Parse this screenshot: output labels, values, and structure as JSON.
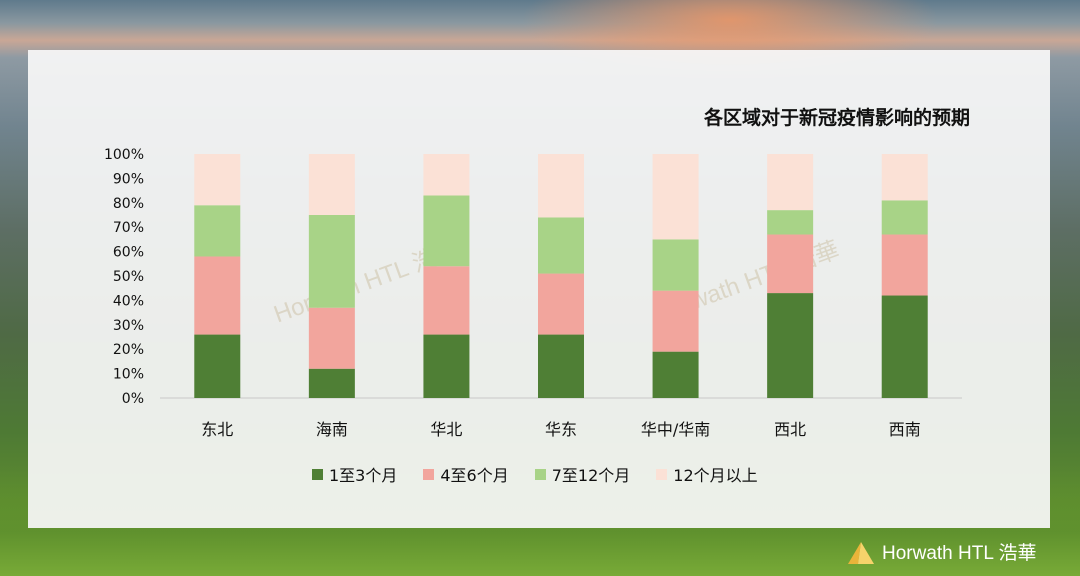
{
  "chart_data": {
    "type": "bar",
    "stacked": true,
    "title": "各区域对于新冠疫情影响的预期",
    "categories": [
      "东北",
      "海南",
      "华北",
      "华东",
      "华中/华南",
      "西北",
      "西南"
    ],
    "y_ticks": [
      "0%",
      "10%",
      "20%",
      "30%",
      "40%",
      "50%",
      "60%",
      "70%",
      "80%",
      "90%",
      "100%"
    ],
    "ylim": [
      0,
      100
    ],
    "series": [
      {
        "name": "1至3个月",
        "color": "#4f7f35",
        "values": [
          26,
          12,
          26,
          26,
          19,
          43,
          42
        ]
      },
      {
        "name": "4至6个月",
        "color": "#f2a59d",
        "values": [
          32,
          25,
          28,
          25,
          25,
          24,
          25
        ]
      },
      {
        "name": "7至12个月",
        "color": "#a8d387",
        "values": [
          21,
          38,
          29,
          23,
          21,
          10,
          14
        ]
      },
      {
        "name": "12个月以上",
        "color": "#fbe1d6",
        "values": [
          21,
          25,
          17,
          26,
          35,
          23,
          19
        ]
      }
    ],
    "legend_position": "bottom",
    "grid": false
  },
  "watermark": "Horwath HTL 浩華",
  "logo": {
    "text": "Horwath HTL 浩華"
  }
}
